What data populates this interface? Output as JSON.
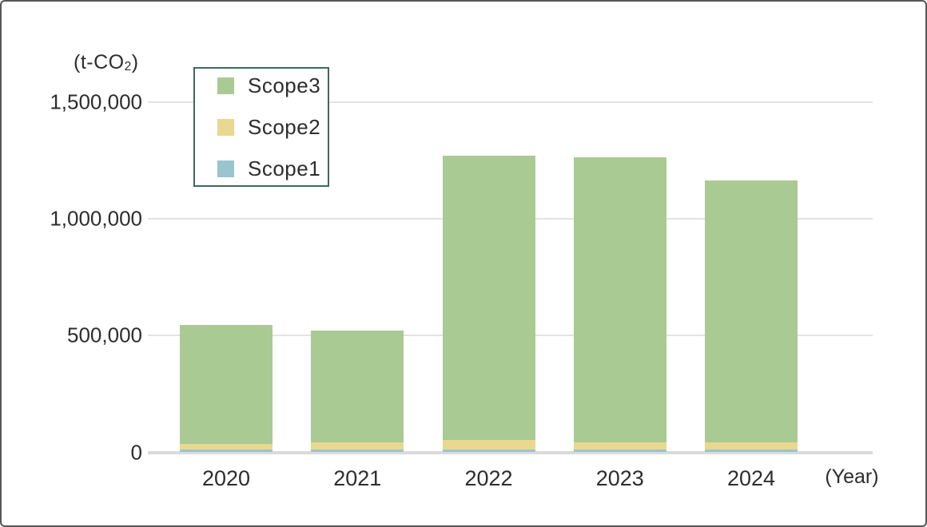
{
  "chart_data": {
    "type": "bar",
    "stacked": true,
    "title": "",
    "y_unit_label": "(t-CO₂)",
    "y_unit_parts": {
      "prefix": "(t-CO",
      "sub": "2",
      "suffix": ")"
    },
    "x_unit_label": "(Year)",
    "categories": [
      "2020",
      "2021",
      "2022",
      "2023",
      "2024"
    ],
    "series": [
      {
        "name": "Scope1",
        "color": "#9ac4ce",
        "values": [
          10000,
          10000,
          10000,
          10000,
          10000
        ]
      },
      {
        "name": "Scope2",
        "color": "#e9d88f",
        "values": [
          25000,
          30000,
          40000,
          30000,
          30000
        ]
      },
      {
        "name": "Scope3",
        "color": "#aaca94",
        "values": [
          510000,
          480000,
          1220000,
          1225000,
          1125000
        ]
      }
    ],
    "totals": [
      545000,
      520000,
      1270000,
      1265000,
      1165000
    ],
    "y_ticks": [
      {
        "label": "1,500,000",
        "value": 1500000
      },
      {
        "label": "1,000,000",
        "value": 1000000
      },
      {
        "label": "500,000",
        "value": 500000
      },
      {
        "label": "0",
        "value": 0
      }
    ],
    "ylim": [
      0,
      1500000
    ],
    "grid": true,
    "legend": {
      "position": "top-left",
      "order": [
        "Scope3",
        "Scope2",
        "Scope1"
      ]
    },
    "colors": {
      "grid": "#e3e3e3",
      "axis": "#dadada",
      "text": "#2d2d2d",
      "legend_border": "#3e6958",
      "frame_border": "#58585a"
    }
  }
}
